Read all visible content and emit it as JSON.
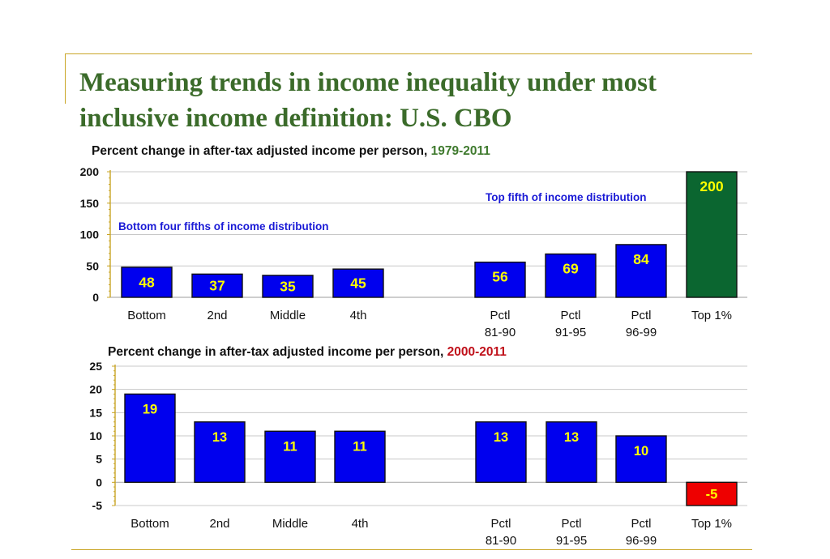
{
  "slide": {
    "title_line1": "Measuring trends in income inequality under most",
    "title_line2": "inclusive income definition:  U.S. CBO"
  },
  "colors": {
    "bar": "#0000ee",
    "top1_a": "#0b6630",
    "top1_b": "#ee0000",
    "label": "#ffff00",
    "title_green": "#3b6b2a"
  },
  "chart_data": [
    {
      "type": "bar",
      "title": "Percent change in after-tax adjusted income per person, ",
      "title_years": "1979-2011",
      "categories": [
        [
          "Bottom"
        ],
        [
          "2nd"
        ],
        [
          "Middle"
        ],
        [
          "4th"
        ],
        [
          "Pctl",
          "81-90"
        ],
        [
          "Pctl",
          "91-95"
        ],
        [
          "Pctl",
          "96-99"
        ],
        [
          "Top 1%"
        ]
      ],
      "values": [
        48,
        37,
        35,
        45,
        56,
        69,
        84,
        200
      ],
      "labels": [
        "48",
        "37",
        "35",
        "45",
        "56",
        "69",
        "84",
        "200"
      ],
      "ylim": [
        0,
        200
      ],
      "yticks": [
        0,
        50,
        100,
        150,
        200
      ],
      "annotations": [
        "Bottom four fifths of income distribution",
        "Top fifth of income distribution"
      ]
    },
    {
      "type": "bar",
      "title": "Percent change in after-tax adjusted income per person, ",
      "title_years": "2000-2011",
      "categories": [
        [
          "Bottom"
        ],
        [
          "2nd"
        ],
        [
          "Middle"
        ],
        [
          "4th"
        ],
        [
          "Pctl",
          "81-90"
        ],
        [
          "Pctl",
          "91-95"
        ],
        [
          "Pctl",
          "96-99"
        ],
        [
          "Top 1%"
        ]
      ],
      "values": [
        19,
        13,
        11,
        11,
        13,
        13,
        10,
        -5
      ],
      "labels": [
        "19",
        "13",
        "11",
        "11",
        "13",
        "13",
        "10",
        "-5"
      ],
      "ylim": [
        -5,
        25
      ],
      "yticks": [
        -5,
        0,
        5,
        10,
        15,
        20,
        25
      ]
    }
  ]
}
